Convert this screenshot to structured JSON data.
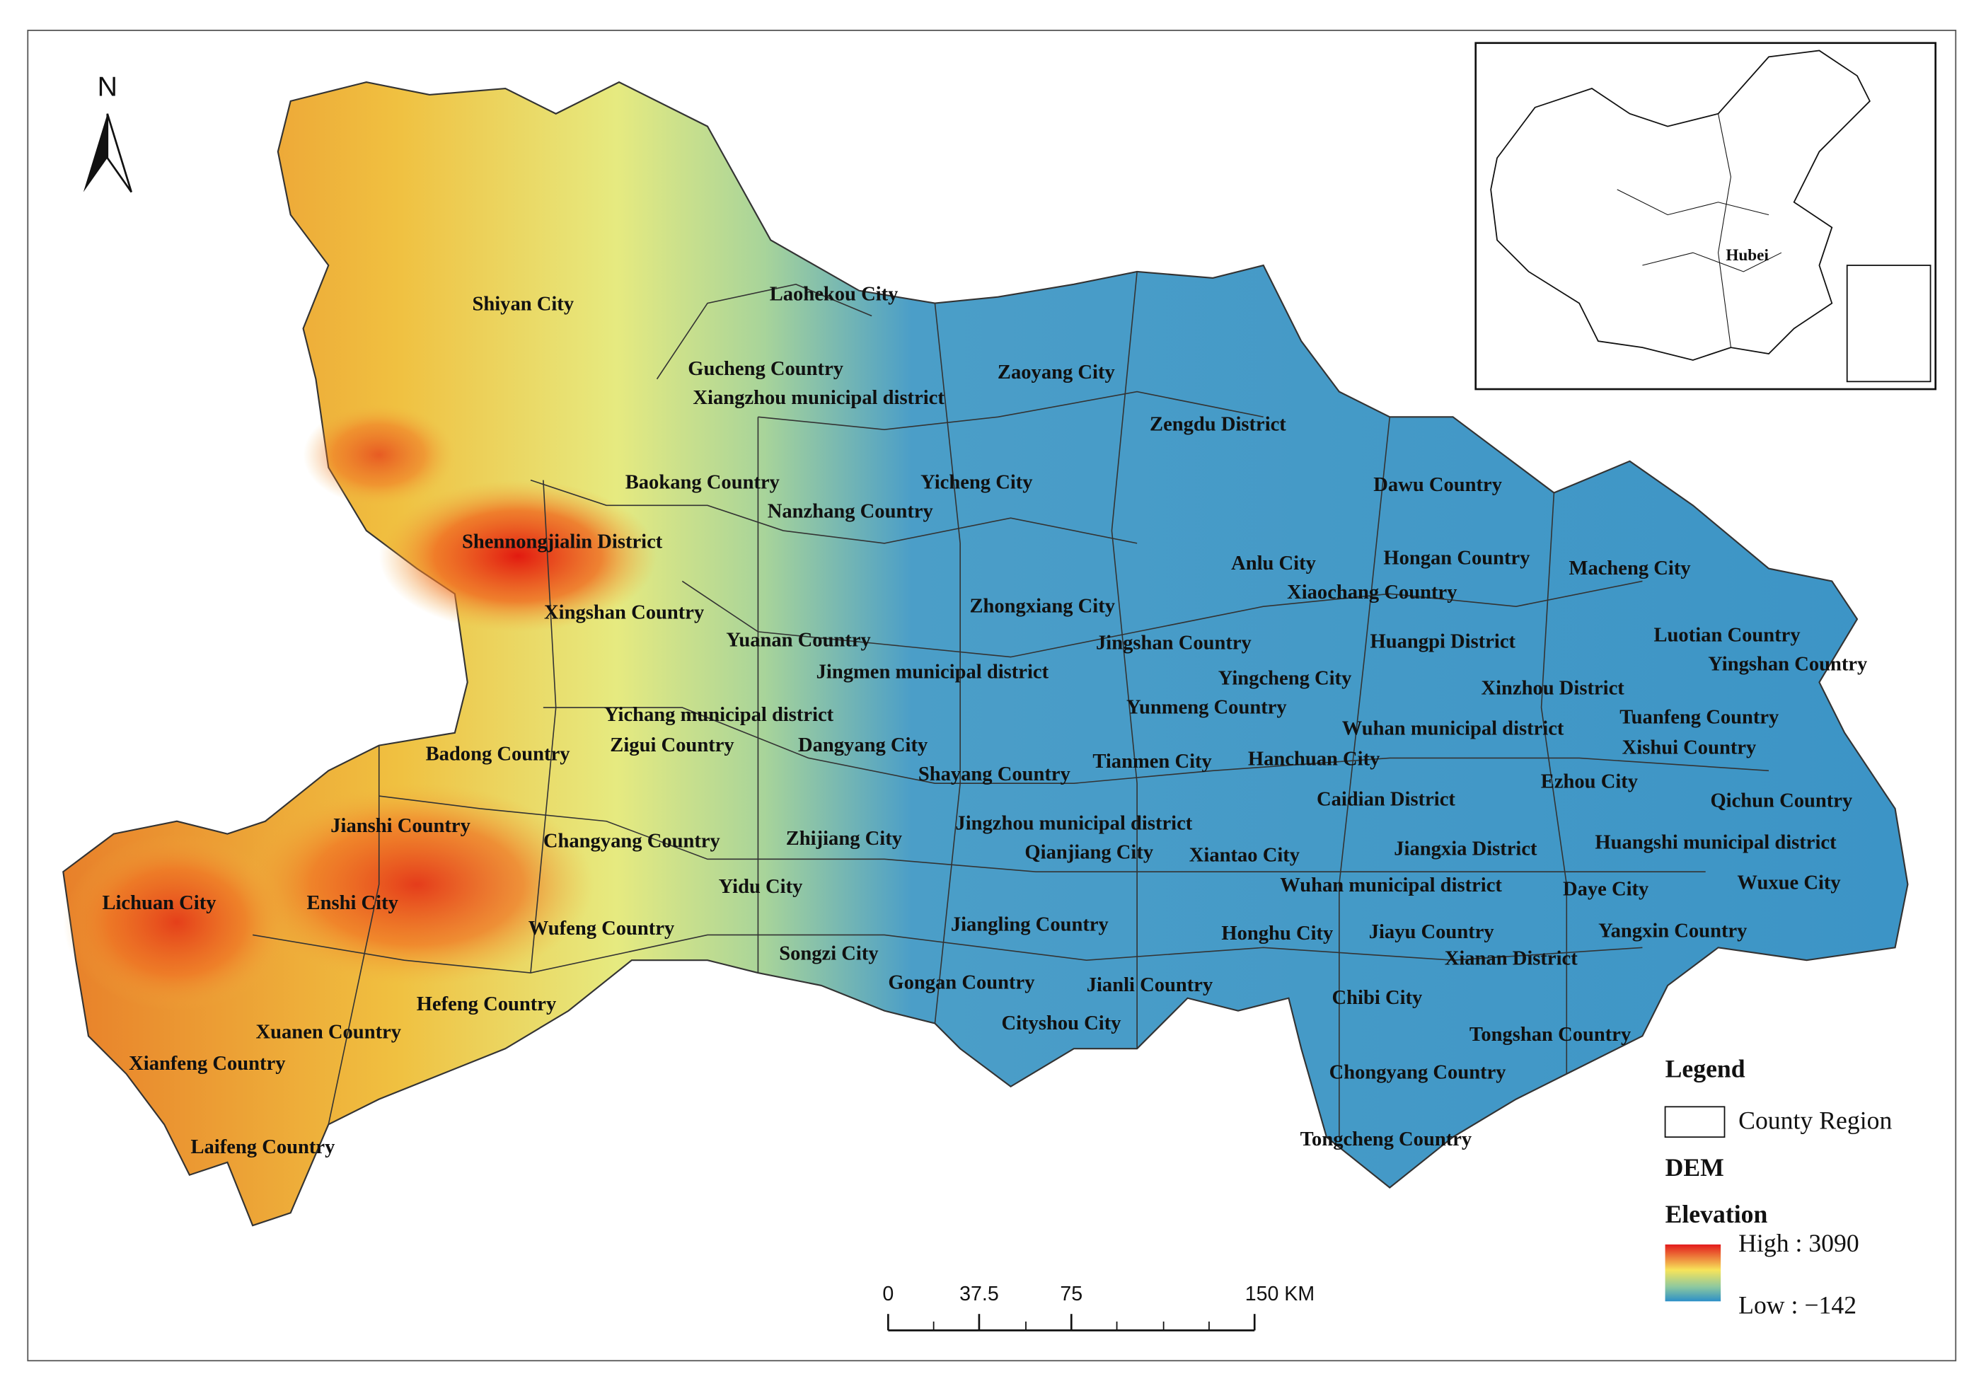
{
  "north": "N",
  "inset": {
    "label": "Hubei"
  },
  "places": [
    "Shiyan City",
    "Laohekou City",
    "Gucheng Country",
    "Xiangzhou municipal district",
    "Zaoyang City",
    "Zengdu District",
    "Baokang Country",
    "Yicheng City",
    "Nanzhang Country",
    "Dawu Country",
    "Shennongjialin District",
    "Anlu City",
    "Hongan Country",
    "Macheng City",
    "Xiaochang Country",
    "Xingshan Country",
    "Zhongxiang City",
    "Yuanan Country",
    "Jingshan Country",
    "Huangpi District",
    "Luotian Country",
    "Jingmen municipal district",
    "Yingcheng City",
    "Yingshan Country",
    "Xinzhou District",
    "Yichang municipal district",
    "Yunmeng Country",
    "Tuanfeng Country",
    "Wuhan municipal district",
    "Zigui Country",
    "Dangyang City",
    "Badong Country",
    "Xishui Country",
    "Hanchuan City",
    "Tianmen City",
    "Shayang Country",
    "Ezhou City",
    "Caidian District",
    "Qichun Country",
    "Jianshi Country",
    "Jingzhou municipal district",
    "Changyang Country",
    "Zhijiang City",
    "Huangshi municipal district",
    "Jiangxia District",
    "Qianjiang City",
    "Xiantao City",
    "Lichuan City",
    "Enshi City",
    "Yidu City",
    "Wuhan municipal district",
    "Daye City",
    "Wuxue City",
    "Wufeng Country",
    "Jiangling Country",
    "Honghu City",
    "Jiayu Country",
    "Yangxin Country",
    "Songzi City",
    "Xianan District",
    "Gongan Country",
    "Jianli Country",
    "Hefeng Country",
    "Chibi City",
    "Cityshou City",
    "Xuanen Country",
    "Tongshan Country",
    "Xianfeng Country",
    "Chongyang Country",
    "Laifeng Country",
    "Tongcheng Country"
  ],
  "legend": {
    "title": "Legend",
    "county": "County Region",
    "dem": "DEM",
    "elevation": "Elevation",
    "high": "High : 3090",
    "low": "Low : −142"
  },
  "scale_bar": {
    "ticks": [
      "0",
      "37.5",
      "75",
      "150 KM"
    ]
  }
}
